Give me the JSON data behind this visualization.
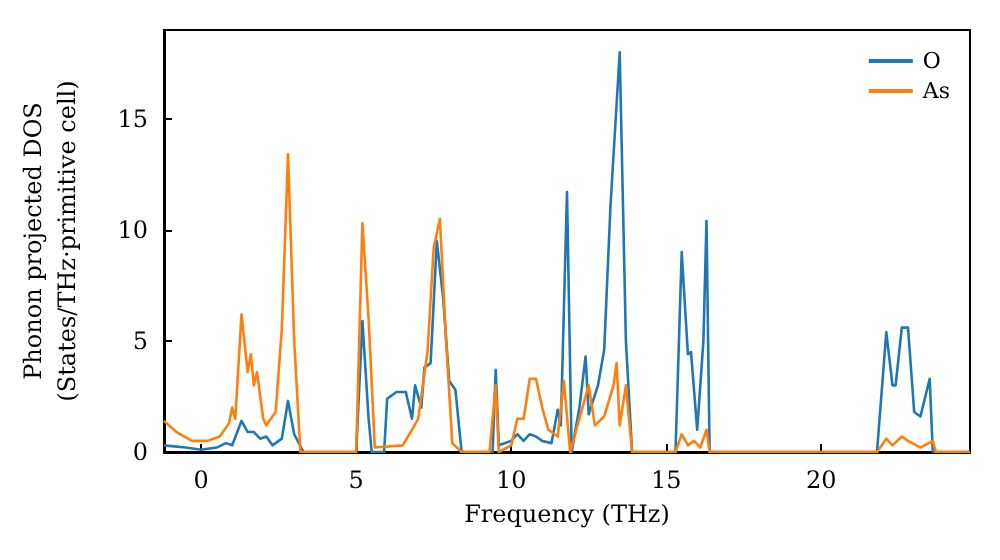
{
  "chart_data": {
    "type": "line",
    "xlabel": "Frequency (THz)",
    "ylabel": "Phonon projected DOS\n(States/THz·primitive cell)",
    "xlim": [
      -1.2,
      24.8
    ],
    "xticks": [
      0,
      5,
      10,
      15,
      20
    ],
    "ylim": [
      0,
      19
    ],
    "yticks": [
      0,
      5,
      10,
      15
    ],
    "grid": false,
    "legend": "top right",
    "marker": "none",
    "line_style": "solid",
    "series": [
      {
        "name": "O",
        "color": "#1f77b4",
        "x": [
          -1.2,
          -0.5,
          0,
          0.5,
          0.8,
          1.0,
          1.3,
          1.5,
          1.7,
          1.9,
          2.1,
          2.3,
          2.6,
          2.8,
          3.0,
          3.3,
          5.0,
          5.2,
          5.4,
          5.5,
          5.9,
          6.0,
          6.3,
          6.6,
          6.8,
          6.9,
          7.1,
          7.2,
          7.4,
          7.6,
          7.8,
          8.0,
          8.2,
          8.4,
          9.4,
          9.5,
          9.6,
          10.0,
          10.2,
          10.4,
          10.6,
          10.8,
          11.0,
          11.3,
          11.5,
          11.6,
          11.8,
          11.95,
          12.2,
          12.4,
          12.5,
          12.8,
          13.0,
          13.2,
          13.5,
          13.7,
          13.9,
          15.3,
          15.5,
          15.7,
          15.8,
          16.0,
          16.2,
          16.3,
          16.4,
          21.8,
          22.1,
          22.3,
          22.4,
          22.6,
          22.8,
          23.0,
          23.2,
          23.5,
          23.6,
          24.8
        ],
        "values": [
          0.3,
          0.2,
          0.1,
          0.2,
          0.4,
          0.3,
          1.4,
          0.9,
          0.9,
          0.6,
          0.7,
          0.3,
          0.6,
          2.3,
          0.8,
          0,
          0,
          5.9,
          1.5,
          0,
          0,
          2.4,
          2.7,
          2.7,
          1.5,
          3.0,
          2.0,
          3.8,
          4.0,
          9.5,
          7.0,
          3.2,
          2.8,
          0,
          0,
          3.7,
          0.3,
          0.5,
          0.8,
          0.5,
          0.8,
          0.7,
          0.5,
          0.4,
          1.9,
          1.2,
          11.7,
          0,
          2.0,
          4.3,
          1.7,
          3.0,
          4.6,
          11.0,
          18.0,
          5.0,
          0,
          0,
          9.0,
          4.4,
          4.5,
          1.0,
          5.0,
          10.4,
          0,
          0,
          5.4,
          3.0,
          3.0,
          5.6,
          5.6,
          1.8,
          1.6,
          3.3,
          0,
          0
        ]
      },
      {
        "name": "As",
        "color": "#ff7f0e",
        "x": [
          -1.2,
          -0.8,
          -0.3,
          0.2,
          0.6,
          0.9,
          1.0,
          1.1,
          1.3,
          1.5,
          1.6,
          1.7,
          1.8,
          2.0,
          2.1,
          2.4,
          2.6,
          2.8,
          3.0,
          3.2,
          5.0,
          5.2,
          5.4,
          5.6,
          6.5,
          6.8,
          7.0,
          7.3,
          7.5,
          7.7,
          7.9,
          8.1,
          8.4,
          9.3,
          9.5,
          9.6,
          10.0,
          10.2,
          10.4,
          10.6,
          10.8,
          11.0,
          11.2,
          11.5,
          11.7,
          11.9,
          12.2,
          12.5,
          12.7,
          13.0,
          13.3,
          13.4,
          13.5,
          13.7,
          13.9,
          15.3,
          15.5,
          15.7,
          15.9,
          16.1,
          16.3,
          16.4,
          21.8,
          22.1,
          22.3,
          22.6,
          22.8,
          23.2,
          23.6,
          23.7,
          24.8
        ],
        "values": [
          1.4,
          0.9,
          0.5,
          0.5,
          0.7,
          1.3,
          2.0,
          1.5,
          6.2,
          3.6,
          4.4,
          3.0,
          3.6,
          1.5,
          1.2,
          1.8,
          5.5,
          13.4,
          5.0,
          0,
          0,
          10.3,
          6.0,
          0.2,
          0.3,
          1.0,
          1.5,
          4.5,
          9.2,
          10.5,
          5.0,
          0.4,
          0,
          0,
          3.0,
          0,
          0.3,
          1.5,
          1.5,
          3.3,
          3.3,
          2.0,
          1.0,
          0.7,
          3.2,
          0,
          1.5,
          3.0,
          1.2,
          1.6,
          3.0,
          4.0,
          1.2,
          3.0,
          0,
          0,
          0.8,
          0.3,
          0.5,
          0.2,
          1.0,
          0,
          0,
          0.6,
          0.3,
          0.7,
          0.5,
          0.2,
          0.5,
          0,
          0
        ]
      }
    ]
  }
}
